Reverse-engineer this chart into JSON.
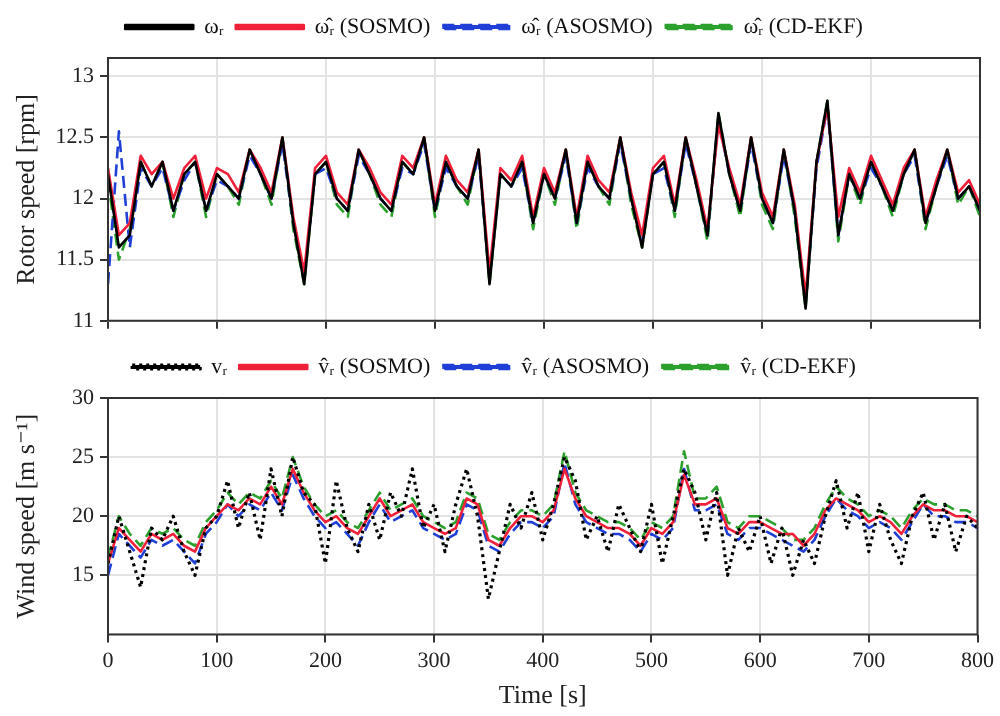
{
  "chart_data": [
    {
      "type": "line",
      "ylabel": "Rotor speed [rpm]",
      "tick_labels": "y",
      "grid": true,
      "legend": "top",
      "marker": "none",
      "x": [
        0,
        10,
        20,
        30,
        40,
        50,
        60,
        70,
        80,
        90,
        100,
        110,
        120,
        130,
        140,
        150,
        160,
        170,
        180,
        190,
        200,
        210,
        220,
        230,
        240,
        250,
        260,
        270,
        280,
        290,
        300,
        310,
        320,
        330,
        340,
        350,
        360,
        370,
        380,
        390,
        400,
        410,
        420,
        430,
        440,
        450,
        460,
        470,
        480,
        490,
        500,
        510,
        520,
        530,
        540,
        550,
        560,
        570,
        580,
        590,
        600,
        610,
        620,
        630,
        640,
        650,
        660,
        670,
        680,
        690,
        700,
        710,
        720,
        730,
        740,
        750,
        760,
        770,
        780,
        790,
        800
      ],
      "xlim": [
        0,
        800
      ],
      "xticks": [
        0,
        100,
        200,
        300,
        400,
        500,
        600,
        700,
        800
      ],
      "ylim": [
        11,
        13.15
      ],
      "yticks": [
        11,
        11.5,
        12,
        12.5,
        13
      ],
      "series": [
        {
          "name": "ωᵣ",
          "color": "#000000",
          "line_style": "solid",
          "values": [
            12.2,
            11.6,
            11.7,
            12.3,
            12.1,
            12.3,
            11.9,
            12.2,
            12.3,
            11.9,
            12.2,
            12.1,
            12.0,
            12.4,
            12.2,
            12.0,
            12.5,
            11.8,
            11.3,
            12.2,
            12.3,
            12.0,
            11.9,
            12.4,
            12.2,
            12.0,
            11.9,
            12.3,
            12.2,
            12.5,
            11.9,
            12.3,
            12.1,
            12.0,
            12.4,
            11.3,
            12.2,
            12.1,
            12.3,
            11.8,
            12.2,
            12.0,
            12.4,
            11.8,
            12.3,
            12.1,
            12.0,
            12.5,
            12.0,
            11.6,
            12.2,
            12.3,
            11.9,
            12.5,
            12.1,
            11.7,
            12.7,
            12.2,
            11.9,
            12.5,
            12.0,
            11.8,
            12.4,
            11.9,
            11.1,
            12.3,
            12.8,
            11.7,
            12.2,
            12.0,
            12.3,
            12.1,
            11.9,
            12.2,
            12.4,
            11.8,
            12.1,
            12.4,
            12.0,
            12.1,
            11.9
          ]
        },
        {
          "name": "ω̂ᵣ (SOSMO)",
          "color": "#f0203a",
          "line_style": "solid",
          "values": [
            12.25,
            11.7,
            11.8,
            12.35,
            12.2,
            12.3,
            12.0,
            12.25,
            12.35,
            12.0,
            12.25,
            12.2,
            12.05,
            12.4,
            12.25,
            12.05,
            12.5,
            11.85,
            11.4,
            12.25,
            12.35,
            12.05,
            11.95,
            12.4,
            12.25,
            12.05,
            11.95,
            12.35,
            12.25,
            12.5,
            11.95,
            12.35,
            12.15,
            12.05,
            12.4,
            11.4,
            12.25,
            12.15,
            12.35,
            11.85,
            12.25,
            12.05,
            12.4,
            11.85,
            12.35,
            12.15,
            12.05,
            12.5,
            12.05,
            11.7,
            12.25,
            12.35,
            11.95,
            12.5,
            12.15,
            11.75,
            12.6,
            12.25,
            11.95,
            12.5,
            12.05,
            11.85,
            12.4,
            11.95,
            11.2,
            12.3,
            12.75,
            11.85,
            12.25,
            12.05,
            12.35,
            12.15,
            11.95,
            12.25,
            12.4,
            11.85,
            12.15,
            12.4,
            12.05,
            12.15,
            11.95
          ]
        },
        {
          "name": "ω̂ᵣ (ASOSMO)",
          "color": "#1f3fd6",
          "line_style": "dashed",
          "values": [
            11.3,
            12.55,
            11.6,
            12.25,
            12.1,
            12.25,
            11.9,
            12.15,
            12.3,
            11.9,
            12.15,
            12.1,
            12.0,
            12.35,
            12.2,
            12.0,
            12.45,
            11.8,
            11.35,
            12.2,
            12.25,
            12.0,
            11.9,
            12.35,
            12.2,
            12.0,
            11.9,
            12.25,
            12.2,
            12.45,
            11.9,
            12.25,
            12.1,
            12.0,
            12.35,
            11.35,
            12.2,
            12.1,
            12.25,
            11.8,
            12.2,
            12.0,
            12.35,
            11.8,
            12.25,
            12.1,
            12.0,
            12.45,
            12.0,
            11.65,
            12.2,
            12.25,
            11.9,
            12.45,
            12.1,
            11.7,
            12.65,
            12.2,
            11.9,
            12.45,
            12.0,
            11.8,
            12.35,
            11.9,
            11.15,
            12.25,
            12.75,
            11.7,
            12.2,
            12.0,
            12.25,
            12.1,
            11.9,
            12.2,
            12.35,
            11.8,
            12.1,
            12.35,
            12.0,
            12.1,
            11.9
          ]
        },
        {
          "name": "ω̂ᵣ (CD-EKF)",
          "color": "#2ca02c",
          "line_style": "dashed",
          "values": [
            12.15,
            11.5,
            11.75,
            12.3,
            12.1,
            12.3,
            11.85,
            12.2,
            12.3,
            11.85,
            12.2,
            12.1,
            11.95,
            12.4,
            12.2,
            11.95,
            12.5,
            11.75,
            11.3,
            12.2,
            12.3,
            11.95,
            11.85,
            12.4,
            12.2,
            11.95,
            11.85,
            12.3,
            12.2,
            12.5,
            11.85,
            12.3,
            12.1,
            11.95,
            12.4,
            11.3,
            12.2,
            12.1,
            12.3,
            11.75,
            12.2,
            11.95,
            12.4,
            11.75,
            12.3,
            12.1,
            11.95,
            12.5,
            11.95,
            11.6,
            12.2,
            12.3,
            11.85,
            12.5,
            12.1,
            11.65,
            12.7,
            12.2,
            11.85,
            12.5,
            11.95,
            11.75,
            12.4,
            11.85,
            11.1,
            12.3,
            12.8,
            11.65,
            12.2,
            11.95,
            12.3,
            12.1,
            11.85,
            12.2,
            12.4,
            11.75,
            12.1,
            12.4,
            11.95,
            12.1,
            11.85
          ]
        }
      ]
    },
    {
      "type": "line",
      "ylabel": "Wind speed [m s⁻¹]",
      "xlabel": "Time [s]",
      "grid": true,
      "legend": "top",
      "marker": "none",
      "x": [
        0,
        10,
        20,
        30,
        40,
        50,
        60,
        70,
        80,
        90,
        100,
        110,
        120,
        130,
        140,
        150,
        160,
        170,
        180,
        190,
        200,
        210,
        220,
        230,
        240,
        250,
        260,
        270,
        280,
        290,
        300,
        310,
        320,
        330,
        340,
        350,
        360,
        370,
        380,
        390,
        400,
        410,
        420,
        430,
        440,
        450,
        460,
        470,
        480,
        490,
        500,
        510,
        520,
        530,
        540,
        550,
        560,
        570,
        580,
        590,
        600,
        610,
        620,
        630,
        640,
        650,
        660,
        670,
        680,
        690,
        700,
        710,
        720,
        730,
        740,
        750,
        760,
        770,
        780,
        790,
        800
      ],
      "xlim": [
        0,
        800
      ],
      "xticks": [
        0,
        100,
        200,
        300,
        400,
        500,
        600,
        700,
        800
      ],
      "ylim": [
        10,
        30
      ],
      "yticks": [
        15,
        20,
        25,
        30
      ],
      "series": [
        {
          "name": "vᵣ",
          "color": "#000000",
          "line_style": "dotted",
          "values": [
            16,
            20,
            17,
            14,
            19,
            18,
            20,
            17,
            15,
            19,
            20,
            23,
            19,
            22,
            18,
            24,
            20,
            25,
            22,
            21,
            16,
            23,
            19,
            17,
            21,
            18,
            22,
            20,
            24,
            19,
            21,
            17,
            21,
            24,
            20,
            13,
            17,
            21,
            19,
            22,
            18,
            21,
            25,
            23,
            18,
            20,
            17,
            21,
            19,
            17,
            21,
            16,
            20,
            24,
            22,
            18,
            22,
            15,
            19,
            17,
            20,
            16,
            19,
            15,
            18,
            16,
            20,
            23,
            19,
            22,
            17,
            21,
            18,
            16,
            20,
            22,
            18,
            21,
            17,
            20,
            19
          ]
        },
        {
          "name": "v̂ᵣ (SOSMO)",
          "color": "#f0203a",
          "line_style": "solid",
          "values": [
            16,
            19,
            18,
            17,
            18.5,
            18,
            18.5,
            17.5,
            17,
            19,
            20,
            21,
            20.5,
            21.5,
            21,
            22.5,
            21,
            24,
            22,
            20.5,
            19.5,
            20,
            19,
            18.5,
            20,
            21.5,
            20,
            20.5,
            21,
            19.5,
            19,
            18.5,
            19,
            21.5,
            21,
            18,
            17.5,
            19,
            20,
            20,
            19.5,
            20.5,
            24,
            21.5,
            20,
            19.5,
            19,
            19,
            18.5,
            17.5,
            19,
            18.5,
            19.5,
            23.5,
            21,
            21,
            21.5,
            19,
            18.5,
            19.5,
            19.5,
            19,
            18.5,
            18.5,
            17.5,
            18.5,
            20.5,
            21.5,
            21,
            20.5,
            19.5,
            20,
            19.5,
            18.5,
            20,
            21,
            20.5,
            20.5,
            20,
            20,
            19.5
          ]
        },
        {
          "name": "v̂ᵣ (ASOSMO)",
          "color": "#1f3fd6",
          "line_style": "dashed",
          "values": [
            15,
            18.5,
            17.5,
            16.5,
            18,
            17.5,
            18,
            17,
            16,
            18.5,
            19.5,
            21,
            20,
            21,
            20.5,
            22,
            20.5,
            23.5,
            21.5,
            20,
            19,
            19.5,
            18.5,
            17.5,
            19.5,
            21,
            19.5,
            20,
            20.5,
            19,
            18.5,
            18,
            18.5,
            21,
            20.5,
            17.5,
            17,
            18.5,
            19.5,
            19.5,
            19,
            20,
            24.5,
            21,
            19.5,
            19,
            18.5,
            18.5,
            18,
            17,
            18.5,
            18,
            19,
            24,
            20.5,
            20.5,
            21,
            18.5,
            18,
            19,
            19,
            18.5,
            18,
            17.5,
            17,
            18,
            20,
            21.5,
            20.5,
            20,
            19,
            19.5,
            19,
            18,
            19.5,
            21,
            20,
            20,
            19.5,
            19.5,
            19
          ]
        },
        {
          "name": "v̂ᵣ (CD-EKF)",
          "color": "#2ca02c",
          "line_style": "dashed",
          "values": [
            16.5,
            20,
            18.5,
            17.5,
            19,
            18.5,
            19,
            18,
            17.5,
            19.5,
            20.5,
            22,
            21,
            22,
            21.5,
            23,
            21.5,
            25,
            22.5,
            21,
            20,
            20.5,
            19.5,
            19,
            20.5,
            22,
            20.5,
            21,
            21.5,
            20,
            19.5,
            19,
            19.5,
            22,
            21.5,
            18.5,
            18,
            19.5,
            20.5,
            20.5,
            20,
            21,
            25.5,
            22,
            20.5,
            20,
            19.5,
            19.5,
            19,
            18,
            19.5,
            19,
            20,
            25.5,
            21.5,
            21.5,
            22.5,
            19.5,
            19,
            20,
            20,
            19.5,
            19,
            18,
            18,
            19,
            21,
            22.5,
            21.5,
            21,
            20,
            20.5,
            20,
            19,
            20.5,
            21.5,
            21,
            21,
            20.5,
            20.5,
            20
          ]
        }
      ]
    }
  ]
}
